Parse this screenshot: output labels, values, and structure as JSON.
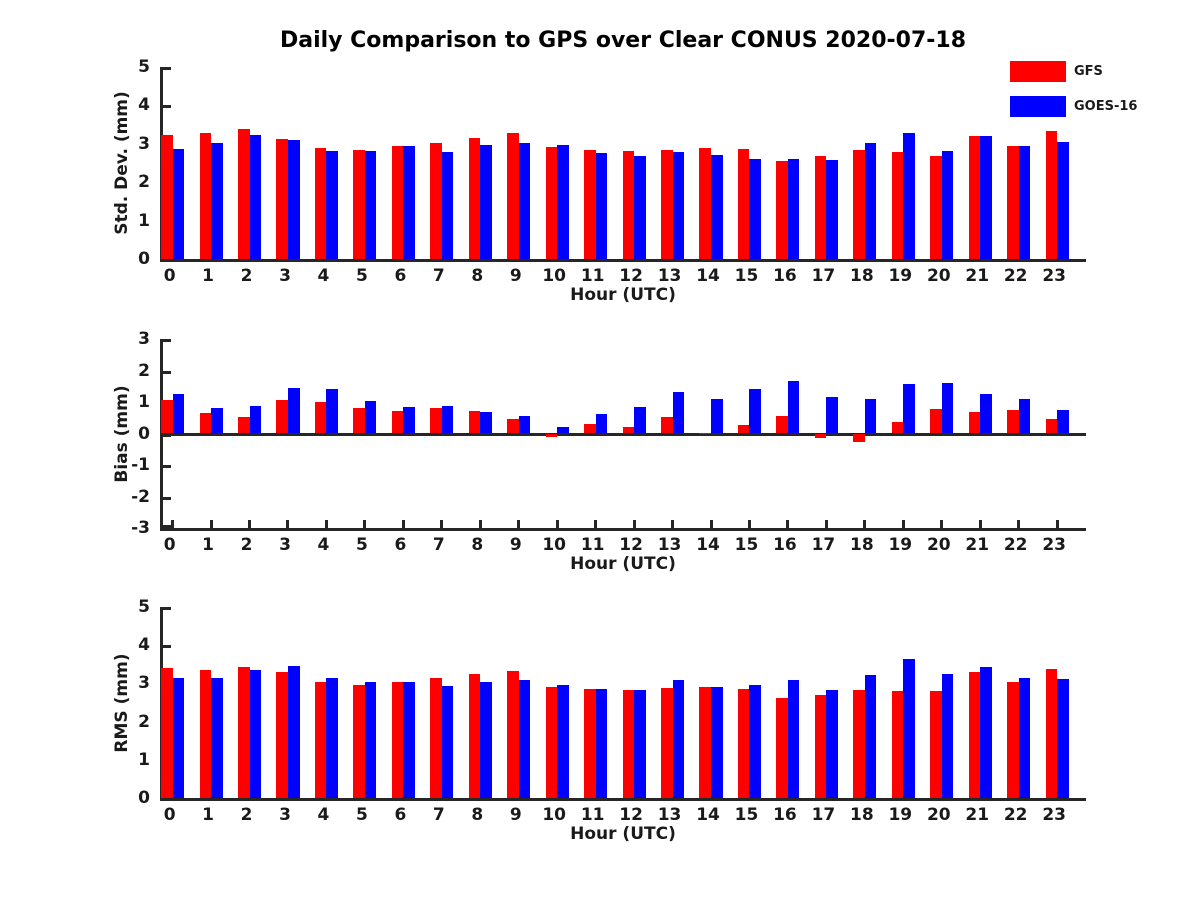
{
  "title": "Daily Comparison to GPS over Clear CONUS 2020-07-18",
  "legend": [
    {
      "label": "GFS",
      "color": "#ff0000"
    },
    {
      "label": "GOES-16",
      "color": "#0000ff"
    }
  ],
  "colors": {
    "axis": "#262626",
    "gfs": "#ff0000",
    "goes16": "#0000ff"
  },
  "chart_data": [
    {
      "type": "bar",
      "ylabel": "Std. Dev. (mm)",
      "xlabel": "Hour (UTC)",
      "ylim": [
        0,
        5
      ],
      "yticks": [
        0,
        1,
        2,
        3,
        4,
        5
      ],
      "grid": false,
      "legend_position": "top-right",
      "categories": [
        0,
        1,
        2,
        3,
        4,
        5,
        6,
        7,
        8,
        9,
        10,
        11,
        12,
        13,
        14,
        15,
        16,
        17,
        18,
        19,
        20,
        21,
        22,
        23
      ],
      "series": [
        {
          "name": "GFS",
          "color": "#ff0000",
          "values": [
            3.22,
            3.27,
            3.38,
            3.12,
            2.89,
            2.85,
            2.95,
            3.03,
            3.15,
            3.27,
            2.91,
            2.85,
            2.81,
            2.83,
            2.88,
            2.87,
            2.56,
            2.69,
            2.85,
            2.78,
            2.68,
            3.2,
            2.95,
            3.34
          ]
        },
        {
          "name": "GOES-16",
          "color": "#0000ff",
          "values": [
            2.87,
            3.01,
            3.23,
            3.11,
            2.8,
            2.82,
            2.93,
            2.79,
            2.98,
            3.03,
            2.97,
            2.77,
            2.67,
            2.78,
            2.7,
            2.6,
            2.6,
            2.57,
            3.03,
            3.28,
            2.82,
            3.21,
            2.95,
            3.04
          ]
        }
      ]
    },
    {
      "type": "bar",
      "ylabel": "Bias (mm)",
      "xlabel": "Hour (UTC)",
      "ylim": [
        -3,
        3
      ],
      "yticks": [
        -3,
        -2,
        -1,
        0,
        1,
        2,
        3
      ],
      "grid": false,
      "categories": [
        0,
        1,
        2,
        3,
        4,
        5,
        6,
        7,
        8,
        9,
        10,
        11,
        12,
        13,
        14,
        15,
        16,
        17,
        18,
        19,
        20,
        21,
        22,
        23
      ],
      "series": [
        {
          "name": "GFS",
          "color": "#ff0000",
          "values": [
            1.07,
            0.66,
            0.51,
            1.05,
            1.01,
            0.82,
            0.73,
            0.82,
            0.73,
            0.46,
            -0.1,
            0.29,
            0.22,
            0.53,
            0.03,
            0.26,
            0.55,
            -0.14,
            -0.27,
            0.35,
            0.78,
            0.69,
            0.76,
            0.47
          ]
        },
        {
          "name": "GOES-16",
          "color": "#0000ff",
          "values": [
            1.25,
            0.82,
            0.88,
            1.46,
            1.4,
            1.03,
            0.85,
            0.88,
            0.67,
            0.57,
            0.21,
            0.63,
            0.83,
            1.33,
            1.08,
            1.42,
            1.68,
            1.17,
            1.08,
            1.58,
            1.6,
            1.26,
            1.09,
            0.74
          ]
        }
      ]
    },
    {
      "type": "bar",
      "ylabel": "RMS (mm)",
      "xlabel": "Hour (UTC)",
      "ylim": [
        0,
        5
      ],
      "yticks": [
        0,
        1,
        2,
        3,
        4,
        5
      ],
      "grid": false,
      "categories": [
        0,
        1,
        2,
        3,
        4,
        5,
        6,
        7,
        8,
        9,
        10,
        11,
        12,
        13,
        14,
        15,
        16,
        17,
        18,
        19,
        20,
        21,
        22,
        23
      ],
      "series": [
        {
          "name": "GFS",
          "color": "#ff0000",
          "values": [
            3.4,
            3.35,
            3.43,
            3.3,
            3.03,
            2.97,
            3.04,
            3.15,
            3.24,
            3.32,
            2.91,
            2.85,
            2.82,
            2.87,
            2.91,
            2.86,
            2.63,
            2.7,
            2.83,
            2.8,
            2.8,
            3.29,
            3.03,
            3.37
          ]
        },
        {
          "name": "GOES-16",
          "color": "#0000ff",
          "values": [
            3.14,
            3.14,
            3.35,
            3.45,
            3.14,
            3.03,
            3.04,
            2.93,
            3.04,
            3.1,
            2.97,
            2.85,
            2.82,
            3.08,
            2.91,
            2.96,
            3.1,
            2.82,
            3.21,
            3.64,
            3.24,
            3.43,
            3.15,
            3.12
          ]
        }
      ]
    }
  ]
}
